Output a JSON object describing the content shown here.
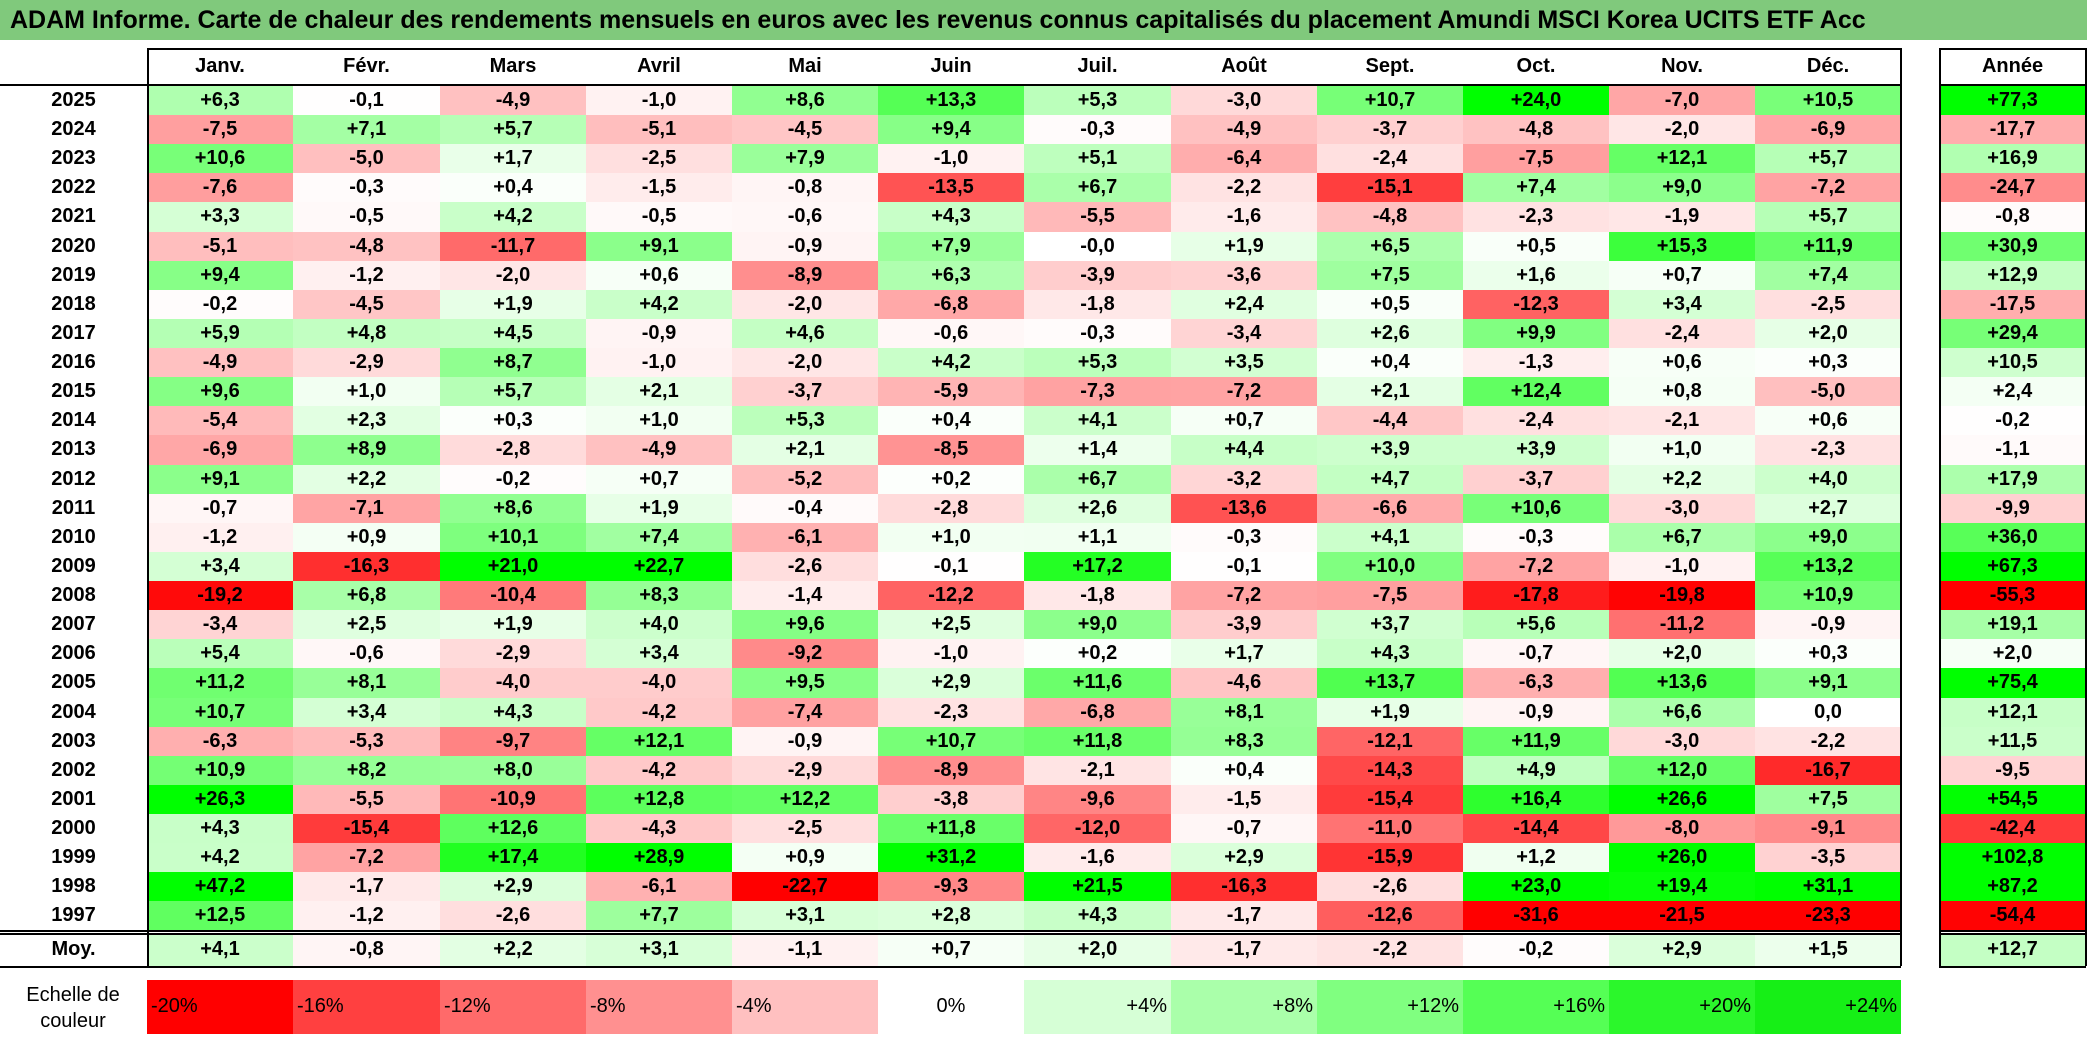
{
  "title": "ADAM Informe. Carte de chaleur des rendements mensuels en euros avec les revenus connus capitalisés du placement Amundi MSCI Korea UCITS ETF Acc",
  "chart_data": {
    "type": "heatmap",
    "columns": [
      "Janv.",
      "Févr.",
      "Mars",
      "Avril",
      "Mai",
      "Juin",
      "Juil.",
      "Août",
      "Sept.",
      "Oct.",
      "Nov.",
      "Déc."
    ],
    "annual_header": "Année",
    "rows": [
      {
        "year": "2025",
        "values": [
          "+6,3",
          "-0,1",
          "-4,9",
          "-1,0",
          "+8,6",
          "+13,3",
          "+5,3",
          "-3,0",
          "+10,7",
          "+24,0",
          "-7,0",
          "+10,5"
        ],
        "annual": "+77,3"
      },
      {
        "year": "2024",
        "values": [
          "-7,5",
          "+7,1",
          "+5,7",
          "-5,1",
          "-4,5",
          "+9,4",
          "-0,3",
          "-4,9",
          "-3,7",
          "-4,8",
          "-2,0",
          "-6,9"
        ],
        "annual": "-17,7"
      },
      {
        "year": "2023",
        "values": [
          "+10,6",
          "-5,0",
          "+1,7",
          "-2,5",
          "+7,9",
          "-1,0",
          "+5,1",
          "-6,4",
          "-2,4",
          "-7,5",
          "+12,1",
          "+5,7"
        ],
        "annual": "+16,9"
      },
      {
        "year": "2022",
        "values": [
          "-7,6",
          "-0,3",
          "+0,4",
          "-1,5",
          "-0,8",
          "-13,5",
          "+6,7",
          "-2,2",
          "-15,1",
          "+7,4",
          "+9,0",
          "-7,2"
        ],
        "annual": "-24,7"
      },
      {
        "year": "2021",
        "values": [
          "+3,3",
          "-0,5",
          "+4,2",
          "-0,5",
          "-0,6",
          "+4,3",
          "-5,5",
          "-1,6",
          "-4,8",
          "-2,3",
          "-1,9",
          "+5,7"
        ],
        "annual": "-0,8"
      },
      {
        "year": "2020",
        "values": [
          "-5,1",
          "-4,8",
          "-11,7",
          "+9,1",
          "-0,9",
          "+7,9",
          "-0,0",
          "+1,9",
          "+6,5",
          "+0,5",
          "+15,3",
          "+11,9"
        ],
        "annual": "+30,9"
      },
      {
        "year": "2019",
        "values": [
          "+9,4",
          "-1,2",
          "-2,0",
          "+0,6",
          "-8,9",
          "+6,3",
          "-3,9",
          "-3,6",
          "+7,5",
          "+1,6",
          "+0,7",
          "+7,4"
        ],
        "annual": "+12,9"
      },
      {
        "year": "2018",
        "values": [
          "-0,2",
          "-4,5",
          "+1,9",
          "+4,2",
          "-2,0",
          "-6,8",
          "-1,8",
          "+2,4",
          "+0,5",
          "-12,3",
          "+3,4",
          "-2,5"
        ],
        "annual": "-17,5"
      },
      {
        "year": "2017",
        "values": [
          "+5,9",
          "+4,8",
          "+4,5",
          "-0,9",
          "+4,6",
          "-0,6",
          "-0,3",
          "-3,4",
          "+2,6",
          "+9,9",
          "-2,4",
          "+2,0"
        ],
        "annual": "+29,4"
      },
      {
        "year": "2016",
        "values": [
          "-4,9",
          "-2,9",
          "+8,7",
          "-1,0",
          "-2,0",
          "+4,2",
          "+5,3",
          "+3,5",
          "+0,4",
          "-1,3",
          "+0,6",
          "+0,3"
        ],
        "annual": "+10,5"
      },
      {
        "year": "2015",
        "values": [
          "+9,6",
          "+1,0",
          "+5,7",
          "+2,1",
          "-3,7",
          "-5,9",
          "-7,3",
          "-7,2",
          "+2,1",
          "+12,4",
          "+0,8",
          "-5,0"
        ],
        "annual": "+2,4"
      },
      {
        "year": "2014",
        "values": [
          "-5,4",
          "+2,3",
          "+0,3",
          "+1,0",
          "+5,3",
          "+0,4",
          "+4,1",
          "+0,7",
          "-4,4",
          "-2,4",
          "-2,1",
          "+0,6"
        ],
        "annual": "-0,2"
      },
      {
        "year": "2013",
        "values": [
          "-6,9",
          "+8,9",
          "-2,8",
          "-4,9",
          "+2,1",
          "-8,5",
          "+1,4",
          "+4,4",
          "+3,9",
          "+3,9",
          "+1,0",
          "-2,3"
        ],
        "annual": "-1,1"
      },
      {
        "year": "2012",
        "values": [
          "+9,1",
          "+2,2",
          "-0,2",
          "+0,7",
          "-5,2",
          "+0,2",
          "+6,7",
          "-3,2",
          "+4,7",
          "-3,7",
          "+2,2",
          "+4,0"
        ],
        "annual": "+17,9"
      },
      {
        "year": "2011",
        "values": [
          "-0,7",
          "-7,1",
          "+8,6",
          "+1,9",
          "-0,4",
          "-2,8",
          "+2,6",
          "-13,6",
          "-6,6",
          "+10,6",
          "-3,0",
          "+2,7"
        ],
        "annual": "-9,9"
      },
      {
        "year": "2010",
        "values": [
          "-1,2",
          "+0,9",
          "+10,1",
          "+7,4",
          "-6,1",
          "+1,0",
          "+1,1",
          "-0,3",
          "+4,1",
          "-0,3",
          "+6,7",
          "+9,0"
        ],
        "annual": "+36,0"
      },
      {
        "year": "2009",
        "values": [
          "+3,4",
          "-16,3",
          "+21,0",
          "+22,7",
          "-2,6",
          "-0,1",
          "+17,2",
          "-0,1",
          "+10,0",
          "-7,2",
          "-1,0",
          "+13,2"
        ],
        "annual": "+67,3"
      },
      {
        "year": "2008",
        "values": [
          "-19,2",
          "+6,8",
          "-10,4",
          "+8,3",
          "-1,4",
          "-12,2",
          "-1,8",
          "-7,2",
          "-7,5",
          "-17,8",
          "-19,8",
          "+10,9"
        ],
        "annual": "-55,3"
      },
      {
        "year": "2007",
        "values": [
          "-3,4",
          "+2,5",
          "+1,9",
          "+4,0",
          "+9,6",
          "+2,5",
          "+9,0",
          "-3,9",
          "+3,7",
          "+5,6",
          "-11,2",
          "-0,9"
        ],
        "annual": "+19,1"
      },
      {
        "year": "2006",
        "values": [
          "+5,4",
          "-0,6",
          "-2,9",
          "+3,4",
          "-9,2",
          "-1,0",
          "+0,2",
          "+1,7",
          "+4,3",
          "-0,7",
          "+2,0",
          "+0,3"
        ],
        "annual": "+2,0"
      },
      {
        "year": "2005",
        "values": [
          "+11,2",
          "+8,1",
          "-4,0",
          "-4,0",
          "+9,5",
          "+2,9",
          "+11,6",
          "-4,6",
          "+13,7",
          "-6,3",
          "+13,6",
          "+9,1"
        ],
        "annual": "+75,4"
      },
      {
        "year": "2004",
        "values": [
          "+10,7",
          "+3,4",
          "+4,3",
          "-4,2",
          "-7,4",
          "-2,3",
          "-6,8",
          "+8,1",
          "+1,9",
          "-0,9",
          "+6,6",
          "0,0"
        ],
        "annual": "+12,1"
      },
      {
        "year": "2003",
        "values": [
          "-6,3",
          "-5,3",
          "-9,7",
          "+12,1",
          "-0,9",
          "+10,7",
          "+11,8",
          "+8,3",
          "-12,1",
          "+11,9",
          "-3,0",
          "-2,2"
        ],
        "annual": "+11,5"
      },
      {
        "year": "2002",
        "values": [
          "+10,9",
          "+8,2",
          "+8,0",
          "-4,2",
          "-2,9",
          "-8,9",
          "-2,1",
          "+0,4",
          "-14,3",
          "+4,9",
          "+12,0",
          "-16,7"
        ],
        "annual": "-9,5"
      },
      {
        "year": "2001",
        "values": [
          "+26,3",
          "-5,5",
          "-10,9",
          "+12,8",
          "+12,2",
          "-3,8",
          "-9,6",
          "-1,5",
          "-15,4",
          "+16,4",
          "+26,6",
          "+7,5"
        ],
        "annual": "+54,5"
      },
      {
        "year": "2000",
        "values": [
          "+4,3",
          "-15,4",
          "+12,6",
          "-4,3",
          "-2,5",
          "+11,8",
          "-12,0",
          "-0,7",
          "-11,0",
          "-14,4",
          "-8,0",
          "-9,1"
        ],
        "annual": "-42,4"
      },
      {
        "year": "1999",
        "values": [
          "+4,2",
          "-7,2",
          "+17,4",
          "+28,9",
          "+0,9",
          "+31,2",
          "-1,6",
          "+2,9",
          "-15,9",
          "+1,2",
          "+26,0",
          "-3,5"
        ],
        "annual": "+102,8"
      },
      {
        "year": "1998",
        "values": [
          "+47,2",
          "-1,7",
          "+2,9",
          "-6,1",
          "-22,7",
          "-9,3",
          "+21,5",
          "-16,3",
          "-2,6",
          "+23,0",
          "+19,4",
          "+31,1"
        ],
        "annual": "+87,2"
      },
      {
        "year": "1997",
        "values": [
          "+12,5",
          "-1,2",
          "-2,6",
          "+7,7",
          "+3,1",
          "+2,8",
          "+4,3",
          "-1,7",
          "-12,6",
          "-31,6",
          "-21,5",
          "-23,3"
        ],
        "annual": "-54,4"
      }
    ],
    "average": {
      "label": "Moy.",
      "values": [
        "+4,1",
        "-0,8",
        "+2,2",
        "+3,1",
        "-1,1",
        "+0,7",
        "+2,0",
        "-1,7",
        "-2,2",
        "-0,2",
        "+2,9",
        "+1,5"
      ],
      "annual": "+12,7"
    },
    "color_scale": {
      "label": "Echelle de couleur",
      "stops": [
        "-20%",
        "-16%",
        "-12%",
        "-8%",
        "-4%",
        "0%",
        "+4%",
        "+8%",
        "+12%",
        "+16%",
        "+20%",
        "+24%"
      ],
      "colors": [
        "#ff0000",
        "#ff4040",
        "#ff6a6a",
        "#ff9090",
        "#ffc0c0",
        "#ffffff",
        "#d6ffd6",
        "#aaffaa",
        "#80ff80",
        "#55ff55",
        "#2bf72b",
        "#16ef16"
      ]
    }
  }
}
